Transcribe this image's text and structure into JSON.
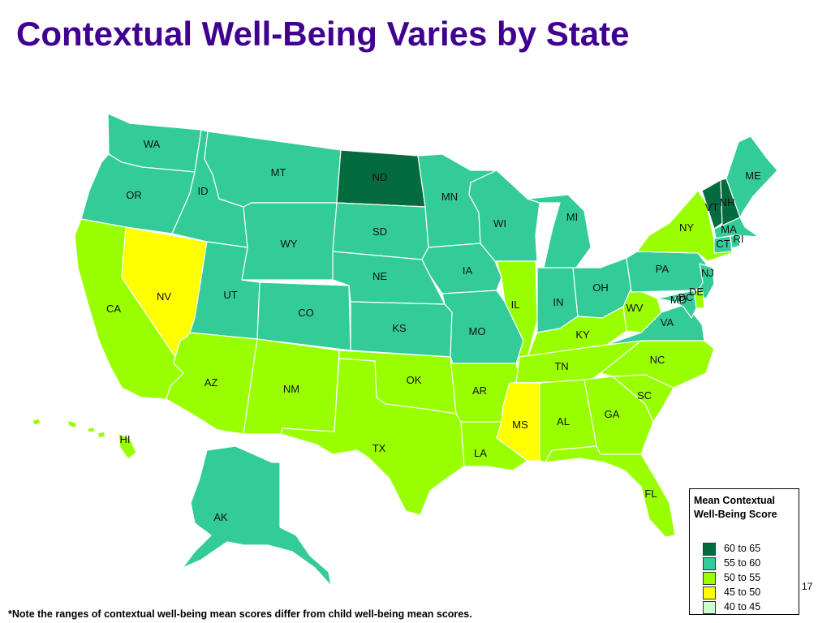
{
  "title": "Contextual Well-Being Varies by State",
  "colors": {
    "c60_65": "#036B3E",
    "c55_60": "#33CC99",
    "c50_55": "#99FF00",
    "c45_50": "#FFFF00",
    "c40_45": "#CCFFCC"
  },
  "legend": {
    "title": "Mean Contextual Well-Being Score",
    "items": [
      {
        "label": "60 to 65",
        "color": "#036B3E"
      },
      {
        "label": "55 to 60",
        "color": "#33CC99"
      },
      {
        "label": "50 to 55",
        "color": "#99FF00"
      },
      {
        "label": "45 to 50",
        "color": "#FFFF00"
      },
      {
        "label": "40 to 45",
        "color": "#CCFFCC"
      }
    ]
  },
  "states": {
    "WA": {
      "label": "WA",
      "range": "55 to 60"
    },
    "OR": {
      "label": "OR",
      "range": "55 to 60"
    },
    "CA": {
      "label": "CA",
      "range": "50 to 55"
    },
    "NV": {
      "label": "NV",
      "range": "45 to 50"
    },
    "ID": {
      "label": "ID",
      "range": "55 to 60"
    },
    "MT": {
      "label": "MT",
      "range": "55 to 60"
    },
    "WY": {
      "label": "WY",
      "range": "55 to 60"
    },
    "UT": {
      "label": "UT",
      "range": "55 to 60"
    },
    "CO": {
      "label": "CO",
      "range": "55 to 60"
    },
    "AZ": {
      "label": "AZ",
      "range": "50 to 55"
    },
    "NM": {
      "label": "NM",
      "range": "50 to 55"
    },
    "ND": {
      "label": "ND",
      "range": "60 to 65"
    },
    "SD": {
      "label": "SD",
      "range": "55 to 60"
    },
    "NE": {
      "label": "NE",
      "range": "55 to 60"
    },
    "KS": {
      "label": "KS",
      "range": "55 to 60"
    },
    "OK": {
      "label": "OK",
      "range": "50 to 55"
    },
    "TX": {
      "label": "TX",
      "range": "50 to 55"
    },
    "MN": {
      "label": "MN",
      "range": "55 to 60"
    },
    "IA": {
      "label": "IA",
      "range": "55 to 60"
    },
    "MO": {
      "label": "MO",
      "range": "55 to 60"
    },
    "AR": {
      "label": "AR",
      "range": "50 to 55"
    },
    "LA": {
      "label": "LA",
      "range": "50 to 55"
    },
    "WI": {
      "label": "WI",
      "range": "55 to 60"
    },
    "IL": {
      "label": "IL",
      "range": "50 to 55"
    },
    "MI": {
      "label": "MI",
      "range": "55 to 60"
    },
    "IN": {
      "label": "IN",
      "range": "55 to 60"
    },
    "OH": {
      "label": "OH",
      "range": "55 to 60"
    },
    "KY": {
      "label": "KY",
      "range": "50 to 55"
    },
    "TN": {
      "label": "TN",
      "range": "50 to 55"
    },
    "MS": {
      "label": "MS",
      "range": "45 to 50"
    },
    "AL": {
      "label": "AL",
      "range": "50 to 55"
    },
    "GA": {
      "label": "GA",
      "range": "50 to 55"
    },
    "FL": {
      "label": "FL",
      "range": "50 to 55"
    },
    "SC": {
      "label": "SC",
      "range": "50 to 55"
    },
    "NC": {
      "label": "NC",
      "range": "50 to 55"
    },
    "VA": {
      "label": "VA",
      "range": "55 to 60"
    },
    "WV": {
      "label": "WV",
      "range": "50 to 55"
    },
    "PA": {
      "label": "PA",
      "range": "55 to 60"
    },
    "NY": {
      "label": "NY",
      "range": "50 to 55"
    },
    "VT": {
      "label": "VT",
      "range": "60 to 65"
    },
    "NH": {
      "label": "NH",
      "range": "60 to 65"
    },
    "ME": {
      "label": "ME",
      "range": "55 to 60"
    },
    "MA": {
      "label": "MA",
      "range": "55 to 60"
    },
    "RI": {
      "label": "RI",
      "range": "55 to 60"
    },
    "CT": {
      "label": "CT",
      "range": "55 to 60"
    },
    "NJ": {
      "label": "NJ",
      "range": "55 to 60"
    },
    "DE": {
      "label": "DE",
      "range": "50 to 55"
    },
    "MD": {
      "label": "MD",
      "range": "55 to 60"
    },
    "DC": {
      "label": "DC",
      "range": "55 to 60"
    },
    "AK": {
      "label": "AK",
      "range": "55 to 60"
    },
    "HI": {
      "label": "HI",
      "range": "50 to 55"
    }
  },
  "page_number": "17",
  "footnote": "*Note the ranges of contextual well-being mean scores differ from child well-being mean scores."
}
